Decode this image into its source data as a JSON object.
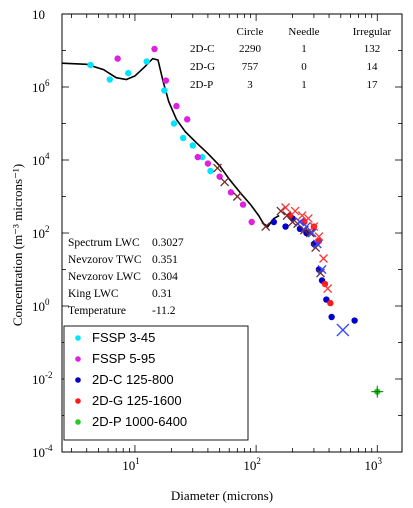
{
  "chart_data": {
    "type": "scatter",
    "xlabel": "Diameter (microns)",
    "ylabel": "Concentration (m⁻³ microns⁻¹)",
    "x_scale": "log",
    "y_scale": "log",
    "xlim": [
      2.5,
      1600
    ],
    "ylim": [
      0.0001,
      100000000
    ],
    "x_ticks": [
      {
        "value": 10,
        "mantissa": "10",
        "exp": "1"
      },
      {
        "value": 100,
        "mantissa": "10",
        "exp": "2"
      },
      {
        "value": 1000,
        "mantissa": "10",
        "exp": "3"
      }
    ],
    "y_ticks": [
      {
        "value": 0.0001,
        "mantissa": "10",
        "exp": "-4"
      },
      {
        "value": 0.01,
        "mantissa": "10",
        "exp": "-2"
      },
      {
        "value": 1,
        "mantissa": "10",
        "exp": "0"
      },
      {
        "value": 100,
        "mantissa": "10",
        "exp": "2"
      },
      {
        "value": 10000,
        "mantissa": "10",
        "exp": "4"
      },
      {
        "value": 1000000,
        "mantissa": "10",
        "exp": "6"
      },
      {
        "value": 100000000,
        "mantissa": "10",
        "exp": ""
      }
    ],
    "series": [
      {
        "name": "FSSP 3-45",
        "color": "#00e5ff",
        "marker": "dot",
        "points": [
          [
            4.3,
            4000000.0
          ],
          [
            6.2,
            1600000.0
          ],
          [
            8.8,
            2400000.0
          ],
          [
            12.5,
            5000000.0
          ],
          [
            17.5,
            800000.0
          ],
          [
            21,
            100000.0
          ],
          [
            25,
            40000.0
          ],
          [
            30,
            25000.0
          ],
          [
            36,
            12000.0
          ],
          [
            42,
            5000.0
          ]
        ]
      },
      {
        "name": "FSSP 5-95",
        "color": "#e020e0",
        "marker": "dot",
        "points": [
          [
            7.2,
            6000000.0
          ],
          [
            14.5,
            11000000.0
          ],
          [
            18,
            1500000.0
          ],
          [
            22,
            300000.0
          ],
          [
            27,
            130000.0
          ],
          [
            33,
            12000.0
          ],
          [
            40,
            8000.0
          ],
          [
            50,
            3500.0
          ],
          [
            62,
            1300.0
          ],
          [
            78,
            600.0
          ],
          [
            92,
            200.0
          ]
        ]
      },
      {
        "name": "2D-C 125-800",
        "color": "#0000cc",
        "marker": "dot",
        "points": [
          [
            140,
            200.0
          ],
          [
            175,
            150.0
          ],
          [
            200,
            250.0
          ],
          [
            230,
            130.0
          ],
          [
            260,
            100.0
          ],
          [
            300,
            50.0
          ],
          [
            330,
            10.0
          ],
          [
            350,
            5.0
          ],
          [
            380,
            1.5
          ],
          [
            420,
            0.5
          ],
          [
            650,
            0.4
          ]
        ]
      },
      {
        "name": "2D-G 125-1600",
        "color": "#ff1a1a",
        "marker": "dot",
        "points": [
          [
            190,
            300.0
          ],
          [
            250,
            200.0
          ],
          [
            300,
            150.0
          ],
          [
            330,
            60.0
          ],
          [
            370,
            4.0
          ],
          [
            410,
            1.2
          ]
        ]
      },
      {
        "name": "2D-P 1000-6400",
        "color": "#22cc22",
        "marker": "dot",
        "points": [
          [
            1000,
            0.0045
          ]
        ]
      },
      {
        "name": "",
        "color": "#6e2a2a",
        "marker": "cross",
        "points": [
          [
            48,
            6000.0
          ],
          [
            55,
            2500.0
          ],
          [
            70,
            1000.0
          ],
          [
            120,
            150.0
          ],
          [
            160,
            400.0
          ],
          [
            180,
            300.0
          ],
          [
            200,
            200.0
          ],
          [
            220,
            180.0
          ],
          [
            250,
            120.0
          ],
          [
            280,
            100.0
          ],
          [
            310,
            40.0
          ],
          [
            340,
            8.0
          ]
        ]
      },
      {
        "name": "",
        "color": "#ff3333",
        "marker": "cross",
        "points": [
          [
            175,
            500.0
          ],
          [
            210,
            400.0
          ],
          [
            240,
            300.0
          ],
          [
            270,
            250.0
          ],
          [
            300,
            150.0
          ],
          [
            330,
            80.0
          ],
          [
            360,
            20.0
          ],
          [
            390,
            3.0
          ]
        ]
      },
      {
        "name": "",
        "color": "#3344ff",
        "marker": "cross",
        "points": [
          [
            230,
            200.0
          ],
          [
            260,
            150.0
          ],
          [
            290,
            100.0
          ],
          [
            320,
            50.0
          ],
          [
            350,
            10.0
          ],
          [
            520,
            0.22
          ]
        ]
      }
    ],
    "fit_line": [
      [
        2.5,
        4500000.0
      ],
      [
        4.0,
        4200000.0
      ],
      [
        5.5,
        3000000.0
      ],
      [
        7.0,
        1800000.0
      ],
      [
        8.5,
        1600000.0
      ],
      [
        10,
        2000000.0
      ],
      [
        12,
        3500000.0
      ],
      [
        14,
        6000000.0
      ],
      [
        15.5,
        5500000.0
      ],
      [
        17,
        1500000.0
      ],
      [
        19,
        400000.0
      ],
      [
        22,
        130000.0
      ],
      [
        26,
        60000.0
      ],
      [
        32,
        30000.0
      ],
      [
        40,
        15000.0
      ],
      [
        50,
        7000.0
      ],
      [
        60,
        3000.0
      ],
      [
        75,
        1200.0
      ],
      [
        90,
        600.0
      ],
      [
        105,
        300.0
      ],
      [
        115,
        180.0
      ],
      [
        125,
        150.0
      ],
      [
        140,
        250.0
      ],
      [
        155,
        300.0
      ]
    ],
    "table": {
      "columns": [
        "",
        "Circle",
        "Needle",
        "Irregular"
      ],
      "rows": [
        [
          "2D-C",
          "2290",
          "1",
          "132"
        ],
        [
          "2D-G",
          "757",
          "0",
          "14"
        ],
        [
          "2D-P",
          "3",
          "1",
          "17"
        ]
      ]
    },
    "annotations": [
      {
        "label": "Spectrum LWC",
        "value": "0.3027"
      },
      {
        "label": "Nevzorov TWC",
        "value": "0.351"
      },
      {
        "label": "Nevzorov LWC",
        "value": "0.304"
      },
      {
        "label": "King     LWC",
        "value": "0.31"
      },
      {
        "label": "Temperature",
        "value": "-11.2"
      }
    ],
    "legend_entries": [
      {
        "label": "FSSP 3-45",
        "color": "#00e5ff"
      },
      {
        "label": "FSSP 5-95",
        "color": "#e020e0"
      },
      {
        "label": "2D-C 125-800",
        "color": "#0000cc"
      },
      {
        "label": "2D-G 125-1600",
        "color": "#ff1a1a"
      },
      {
        "label": "2D-P 1000-6400",
        "color": "#22cc22"
      }
    ],
    "legend_position": "bottom-left",
    "grid": false
  }
}
